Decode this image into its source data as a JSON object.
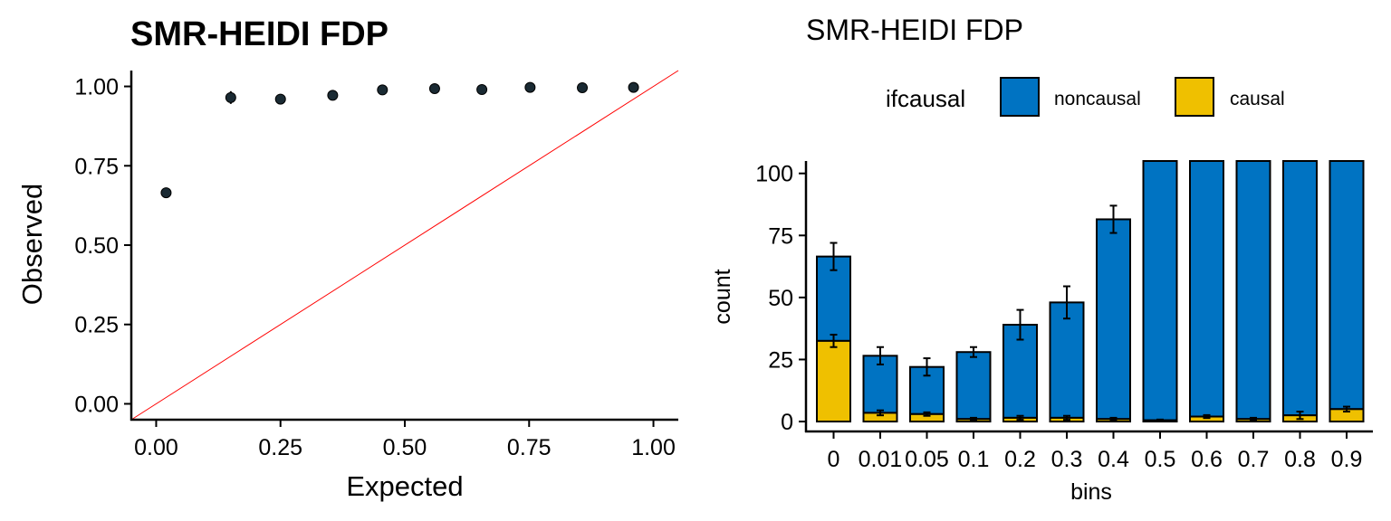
{
  "chart_data": [
    {
      "type": "scatter",
      "title": "SMR-HEIDI FDP",
      "xlabel": "Expected",
      "ylabel": "Observed",
      "xlim": [
        -0.05,
        1.05
      ],
      "ylim": [
        -0.05,
        1.05
      ],
      "xticks": [
        "0.00",
        "0.25",
        "0.50",
        "0.75",
        "1.00"
      ],
      "yticks": [
        "0.00",
        "0.25",
        "0.50",
        "0.75",
        "1.00"
      ],
      "reference_line": {
        "slope": 1,
        "intercept": 0,
        "color": "#ff0000"
      },
      "point_color": "#1a2a33",
      "points": [
        {
          "x": 0.02,
          "y": 0.665,
          "err": 0
        },
        {
          "x": 0.15,
          "y": 0.965,
          "err": 0.02
        },
        {
          "x": 0.25,
          "y": 0.96,
          "err": 0.008
        },
        {
          "x": 0.355,
          "y": 0.972,
          "err": 0.006
        },
        {
          "x": 0.455,
          "y": 0.989,
          "err": 0
        },
        {
          "x": 0.56,
          "y": 0.993,
          "err": 0
        },
        {
          "x": 0.655,
          "y": 0.99,
          "err": 0
        },
        {
          "x": 0.752,
          "y": 0.997,
          "err": 0
        },
        {
          "x": 0.857,
          "y": 0.996,
          "err": 0
        },
        {
          "x": 0.96,
          "y": 0.997,
          "err": 0
        }
      ]
    },
    {
      "type": "bar",
      "stacked": true,
      "title": "SMR-HEIDI FDP",
      "xlabel": "bins",
      "ylabel": "count",
      "ylim": [
        -4,
        105
      ],
      "yticks": [
        "0",
        "25",
        "50",
        "75",
        "100"
      ],
      "categories": [
        "0",
        "0.01",
        "0.05",
        "0.1",
        "0.2",
        "0.3",
        "0.4",
        "0.5",
        "0.6",
        "0.7",
        "0.8",
        "0.9"
      ],
      "legend": {
        "title": "ifcausal",
        "position": "top"
      },
      "series": [
        {
          "name": "causal",
          "color": "#efc000",
          "values": [
            32.5,
            3.5,
            3,
            1,
            1.5,
            1.5,
            1,
            0.5,
            2,
            1,
            2.5,
            5
          ],
          "errors": [
            2.5,
            1,
            0.7,
            0.5,
            0.8,
            0.8,
            0.5,
            0.3,
            0.6,
            0.5,
            1.5,
            1
          ]
        },
        {
          "name": "noncausal",
          "color": "#0073c2",
          "totals": [
            66.5,
            26.5,
            22,
            28,
            39,
            48,
            81.5,
            105,
            105,
            105,
            105,
            105
          ],
          "errors": [
            5.5,
            3.5,
            3.5,
            2,
            6,
            6.5,
            5.5,
            0,
            0,
            0,
            0,
            0
          ]
        }
      ]
    }
  ]
}
